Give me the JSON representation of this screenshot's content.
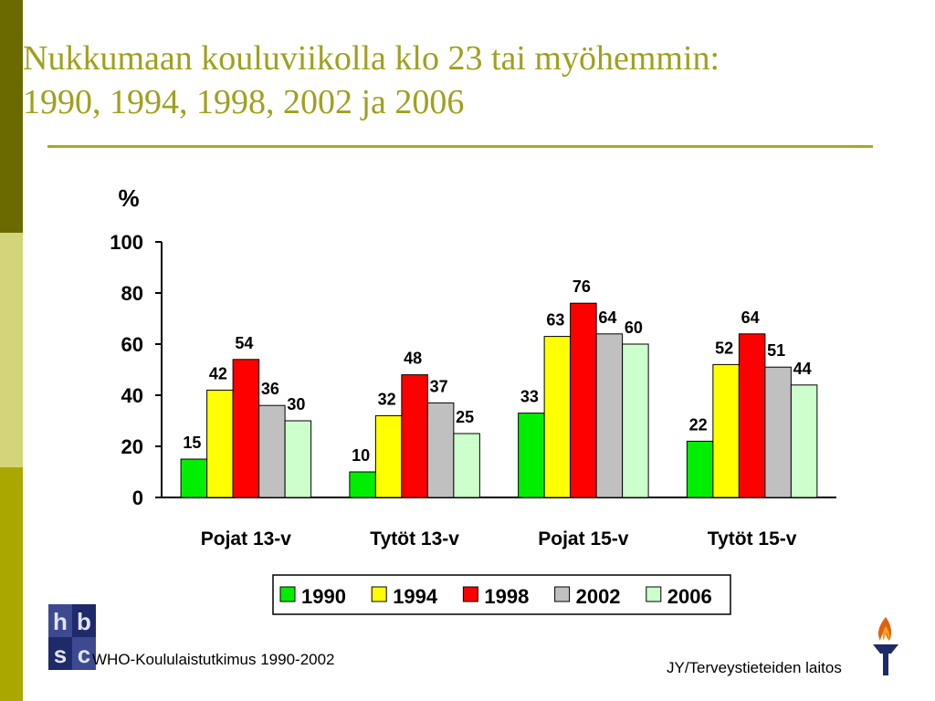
{
  "slide": {
    "title_line1": "Nukkumaan kouluviikolla klo 23 tai myöhemmin:",
    "title_line2": "1990, 1994, 1998, 2002 ja 2006",
    "source": "WHO-Koululaistutkimus 1990-2002",
    "credit": "JY/Terveystieteiden laitos",
    "logo_text": "hbsc",
    "logo_icon": "hbsc-logo-icon",
    "torch_icon": "torch-logo-icon"
  },
  "colors": {
    "title": "#a0a01e",
    "accent_dark": "#6a6a00",
    "accent_light": "#d4d47a",
    "accent_mid": "#a8a800"
  },
  "chart_data": {
    "type": "bar",
    "ylabel": "%",
    "ylim": [
      0,
      100
    ],
    "yticks": [
      0,
      20,
      40,
      60,
      80,
      100
    ],
    "grid": false,
    "legend_position": "bottom",
    "categories": [
      "Pojat 13-v",
      "Tytöt 13-v",
      "Pojat 15-v",
      "Tytöt 15-v"
    ],
    "series": [
      {
        "name": "1990",
        "color": "#00ee00",
        "values": [
          15,
          10,
          33,
          22
        ]
      },
      {
        "name": "1994",
        "color": "#ffff00",
        "values": [
          42,
          32,
          63,
          52
        ]
      },
      {
        "name": "1998",
        "color": "#ff0000",
        "values": [
          54,
          48,
          76,
          64
        ]
      },
      {
        "name": "2002",
        "color": "#c0c0c0",
        "values": [
          36,
          37,
          64,
          51
        ]
      },
      {
        "name": "2006",
        "color": "#ccffcc",
        "values": [
          30,
          25,
          60,
          44
        ]
      }
    ]
  }
}
